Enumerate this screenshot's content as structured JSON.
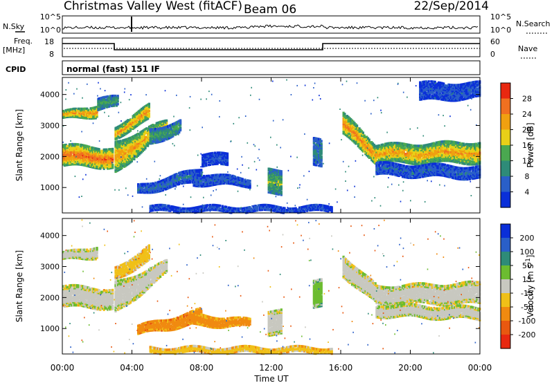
{
  "header": {
    "title": "Christmas Valley West (fitACF)",
    "beam": "Beam 06",
    "date": "22/Sep/2014"
  },
  "nsky_panel": {
    "left_label": "N.Sky",
    "left_ticks": [
      "10^5",
      "10^0"
    ],
    "right_ticks": [
      "10^5",
      "10^0"
    ],
    "right_label": "N.Search"
  },
  "freq_panel": {
    "left_label_1": "Freq.",
    "left_label_2": "[MHz]",
    "left_ticks": [
      "18",
      "8"
    ],
    "right_ticks": [
      "60",
      "0"
    ],
    "right_label": "Nave"
  },
  "cpid": {
    "label": "CPID",
    "program": "normal (fast) 151 IF"
  },
  "chart_data": [
    {
      "type": "heatmap",
      "quantity": "Power",
      "ylabel": "Slant Range [km]",
      "ylim": [
        180,
        4550
      ],
      "yticks": [
        "1000",
        "2000",
        "3000",
        "4000"
      ],
      "colorbar_label": "Power [dB]",
      "colorbar_ticks": [
        "4",
        "8",
        "12",
        "16",
        "20",
        "24",
        "28"
      ],
      "colorbar_range": [
        0,
        32
      ],
      "colors": [
        "#0a2fd8",
        "#2a5fc8",
        "#2e8b78",
        "#4aa850",
        "#e8d018",
        "#f0a010",
        "#f07020",
        "#e82810"
      ],
      "bands": [
        {
          "t0": 0.0,
          "t1": 2.9,
          "r0": 1700,
          "r1": 2400,
          "r2": 1650,
          "r3": 2300,
          "level": 28
        },
        {
          "t0": 0.0,
          "t1": 2.0,
          "r0": 3200,
          "r1": 3450,
          "r2": 3300,
          "r3": 3700,
          "level": 26
        },
        {
          "t0": 2.0,
          "t1": 3.2,
          "r0": 3500,
          "r1": 3900,
          "r2": 3600,
          "r3": 3950,
          "level": 14
        },
        {
          "t0": 3.0,
          "t1": 6.0,
          "r0": 1500,
          "r1": 2500,
          "r2": 2800,
          "r3": 3200,
          "level": 24
        },
        {
          "t0": 3.0,
          "t1": 5.0,
          "r0": 2600,
          "r1": 3000,
          "r2": 3200,
          "r3": 3700,
          "level": 25
        },
        {
          "t0": 5.0,
          "t1": 6.8,
          "r0": 2400,
          "r1": 2900,
          "r2": 2800,
          "r3": 3200,
          "level": 14
        },
        {
          "t0": 4.3,
          "t1": 8.0,
          "r0": 800,
          "r1": 1100,
          "r2": 1200,
          "r3": 1650,
          "level": 8
        },
        {
          "t0": 7.5,
          "t1": 10.8,
          "r0": 1100,
          "r1": 1500,
          "r2": 1050,
          "r3": 1300,
          "level": 7
        },
        {
          "t0": 8.0,
          "t1": 9.5,
          "r0": 1700,
          "r1": 2100,
          "r2": 1700,
          "r3": 2100,
          "level": 5
        },
        {
          "t0": 11.8,
          "t1": 12.6,
          "r0": 800,
          "r1": 1600,
          "r2": 800,
          "r3": 1600,
          "level": 16
        },
        {
          "t0": 14.4,
          "t1": 14.9,
          "r0": 1700,
          "r1": 2600,
          "r2": 1700,
          "r3": 2600,
          "level": 10
        },
        {
          "t0": 16.1,
          "t1": 18.0,
          "r0": 2700,
          "r1": 3400,
          "r2": 1800,
          "r3": 2400,
          "level": 26
        },
        {
          "t0": 18.0,
          "t1": 24.0,
          "r0": 1800,
          "r1": 2400,
          "r2": 1800,
          "r3": 2500,
          "level": 24
        },
        {
          "t0": 18.0,
          "t1": 24.0,
          "r0": 1400,
          "r1": 1800,
          "r2": 1300,
          "r3": 1700,
          "level": 7
        },
        {
          "t0": 20.5,
          "t1": 24.0,
          "r0": 3800,
          "r1": 4400,
          "r2": 3900,
          "r3": 4400,
          "level": 6
        },
        {
          "t0": 5.0,
          "t1": 15.5,
          "r0": 220,
          "r1": 420,
          "r2": 220,
          "r3": 420,
          "level": 6
        }
      ]
    },
    {
      "type": "heatmap",
      "quantity": "Velocity",
      "ylabel": "Slant Range [km]",
      "ylim": [
        180,
        4550
      ],
      "yticks": [
        "1000",
        "2000",
        "3000",
        "4000"
      ],
      "xticks": [
        "00:00",
        "04:00",
        "08:00",
        "12:00",
        "16:00",
        "20:00",
        "00:00"
      ],
      "xlabel": "Time UT",
      "xlim": [
        0,
        24
      ],
      "colorbar_label": "Velocity [m s^-1]",
      "colorbar_ticks": [
        "200",
        "100",
        "50",
        "15",
        "-15",
        "-50",
        "-100",
        "-200"
      ],
      "colors": [
        "#0a2fd8",
        "#2a5fc8",
        "#2e8b78",
        "#6cbc30",
        "#c8c8c0",
        "#f0c018",
        "#f08a10",
        "#e85810",
        "#e82810"
      ],
      "bands": [
        {
          "t0": 0.0,
          "t1": 2.9,
          "r0": 1700,
          "r1": 2400,
          "r2": 1650,
          "r3": 2300,
          "level": 0
        },
        {
          "t0": 0.0,
          "t1": 2.0,
          "r0": 3200,
          "r1": 3450,
          "r2": 3300,
          "r3": 3700,
          "level": 0
        },
        {
          "t0": 3.0,
          "t1": 6.0,
          "r0": 1500,
          "r1": 2500,
          "r2": 2800,
          "r3": 3200,
          "level": 0
        },
        {
          "t0": 3.0,
          "t1": 5.0,
          "r0": 2600,
          "r1": 3000,
          "r2": 3200,
          "r3": 3700,
          "level": -30
        },
        {
          "t0": 4.3,
          "t1": 8.0,
          "r0": 800,
          "r1": 1100,
          "r2": 1200,
          "r3": 1650,
          "level": -70
        },
        {
          "t0": 7.5,
          "t1": 10.8,
          "r0": 1100,
          "r1": 1500,
          "r2": 1050,
          "r3": 1300,
          "level": -60
        },
        {
          "t0": 11.8,
          "t1": 12.6,
          "r0": 800,
          "r1": 1600,
          "r2": 800,
          "r3": 1600,
          "level": 0
        },
        {
          "t0": 14.4,
          "t1": 14.9,
          "r0": 1700,
          "r1": 2600,
          "r2": 1700,
          "r3": 2600,
          "level": 30
        },
        {
          "t0": 16.1,
          "t1": 18.0,
          "r0": 2700,
          "r1": 3400,
          "r2": 1800,
          "r3": 2400,
          "level": 0
        },
        {
          "t0": 18.0,
          "t1": 24.0,
          "r0": 1800,
          "r1": 2400,
          "r2": 1800,
          "r3": 2500,
          "level": 0
        },
        {
          "t0": 18.0,
          "t1": 24.0,
          "r0": 1400,
          "r1": 1800,
          "r2": 1300,
          "r3": 1700,
          "level": 0
        },
        {
          "t0": 5.0,
          "t1": 15.5,
          "r0": 220,
          "r1": 420,
          "r2": 220,
          "r3": 420,
          "level": -30
        }
      ]
    }
  ]
}
